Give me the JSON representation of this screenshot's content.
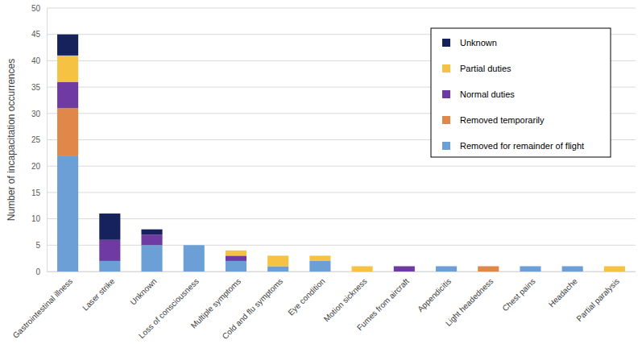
{
  "chart_data": {
    "type": "bar",
    "stacked": true,
    "grid": true,
    "legend": "upper right",
    "y_label": "Number of incapacitation occurrences",
    "categories": [
      "Gastrointestinal illness",
      "Laser strike",
      "Unknown",
      "Loss of consciousness",
      "Multiple symptoms",
      "Cold and flu symptoms",
      "Eye condition",
      "Motion sickness",
      "Fumes from aircraft",
      "Appendicitis",
      "Light headedness",
      "Chest pains",
      "Headache",
      "Partial paralysis"
    ],
    "series": [
      {
        "name": "Removed for remainder of flight",
        "color": "#6b9fd6",
        "values": [
          22,
          2,
          5,
          5,
          2,
          1,
          2,
          0,
          0,
          1,
          0,
          1,
          1,
          0
        ]
      },
      {
        "name": "Removed temporarily",
        "color": "#e0874a",
        "values": [
          9,
          0,
          0,
          0,
          0,
          0,
          0,
          0,
          0,
          0,
          1,
          0,
          0,
          0
        ]
      },
      {
        "name": "Normal duties",
        "color": "#6f3ba3",
        "values": [
          5,
          4,
          2,
          0,
          1,
          0,
          0,
          0,
          1,
          0,
          0,
          0,
          0,
          0
        ]
      },
      {
        "name": "Partial duties",
        "color": "#f5c244",
        "values": [
          5,
          0,
          0,
          0,
          1,
          2,
          1,
          1,
          0,
          0,
          0,
          0,
          0,
          1
        ]
      },
      {
        "name": "Unknown",
        "color": "#15225b",
        "values": [
          4,
          5,
          1,
          0,
          0,
          0,
          0,
          0,
          0,
          0,
          0,
          0,
          0,
          0
        ]
      }
    ],
    "ylim": [
      0,
      50
    ],
    "yticks": [
      0,
      5,
      10,
      15,
      20,
      25,
      30,
      35,
      40,
      45,
      50
    ]
  }
}
